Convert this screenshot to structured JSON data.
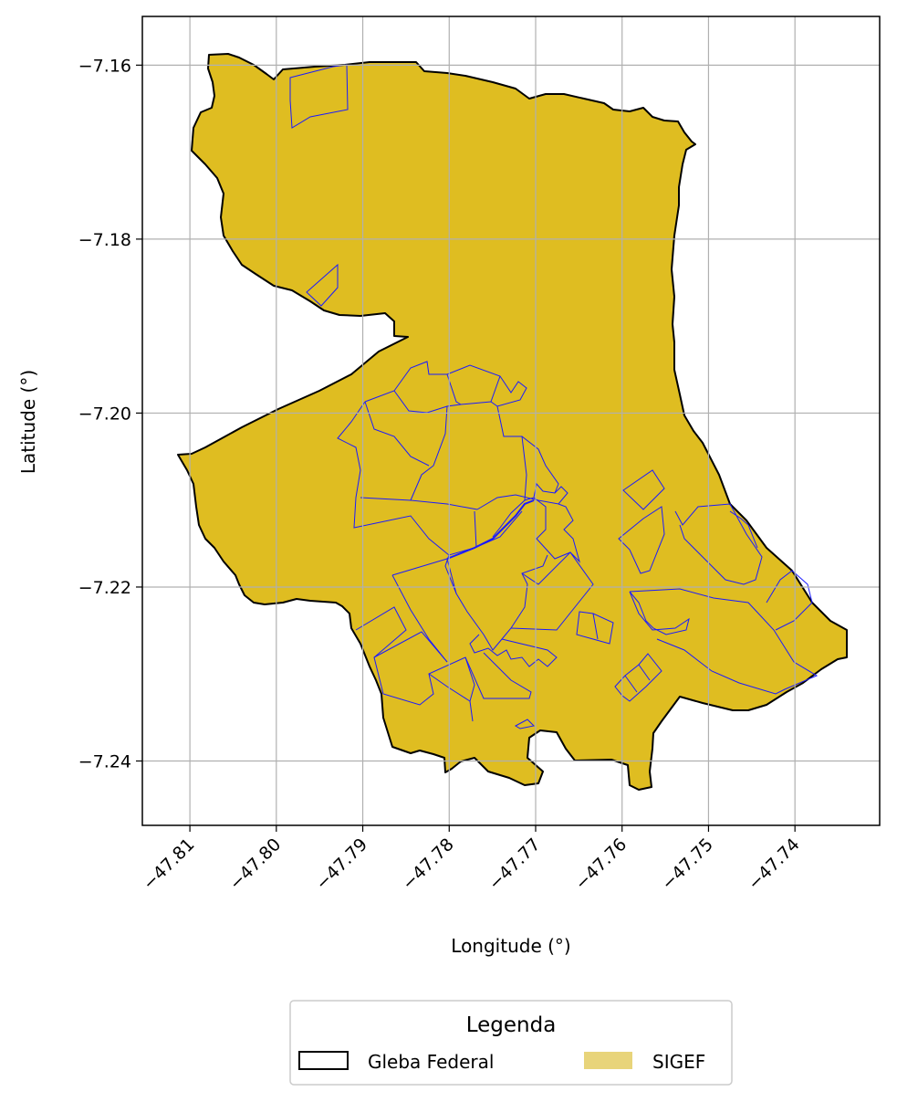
{
  "map": {
    "type": "map",
    "xlabel": "Longitude (°)",
    "ylabel": "Latitude (°)",
    "xlim": [
      -47.8155,
      -47.7302
    ],
    "ylim": [
      -7.2474,
      -7.1544
    ],
    "xticks": [
      "−47.81",
      "−47.80",
      "−47.79",
      "−47.78",
      "−47.77",
      "−47.76",
      "−47.75",
      "−47.74"
    ],
    "xtick_values": [
      -47.81,
      -47.8,
      -47.79,
      -47.78,
      -47.77,
      -47.76,
      -47.75,
      -47.74
    ],
    "yticks": [
      "−7.16",
      "−7.18",
      "−7.20",
      "−7.22",
      "−7.24"
    ],
    "ytick_values": [
      -7.16,
      -7.18,
      -7.2,
      -7.22,
      -7.24
    ],
    "grid": true,
    "legend": {
      "title": "Legenda",
      "placement": "bottom-center below axes",
      "items": [
        {
          "label": "Gleba Federal",
          "style": "outline",
          "color": "#000000"
        },
        {
          "label": "SIGEF",
          "style": "fill",
          "color": "#e8d47a"
        }
      ]
    },
    "colors": {
      "gleba_fill": "#dfbd21",
      "gleba_edge": "#000000",
      "sigef_edge": "#1a1aff",
      "grid": "#b0b0b0"
    }
  }
}
